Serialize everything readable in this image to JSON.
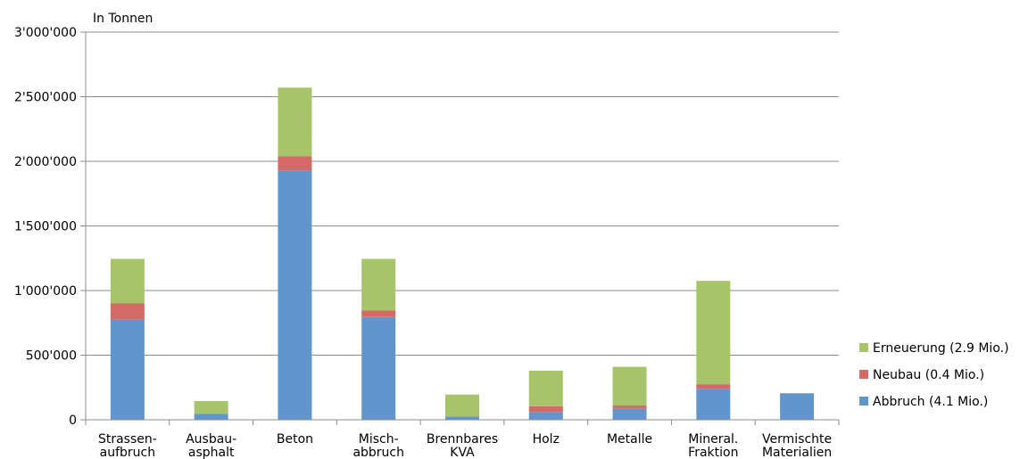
{
  "chart_data": {
    "type": "bar",
    "stacked": true,
    "ylabel": "In Tonnen",
    "ylim": [
      0,
      3000000
    ],
    "yticks": [
      0,
      500000,
      1000000,
      1500000,
      2000000,
      2500000,
      3000000
    ],
    "ytick_labels": [
      "0",
      "500'000",
      "1'000'000",
      "1'500'000",
      "2'000'000",
      "2'500'000",
      "3'000'000"
    ],
    "grid": true,
    "legend_position": "right",
    "categories": [
      [
        "Strassen-",
        "aufbruch"
      ],
      [
        "Ausbau-",
        "asphalt"
      ],
      [
        "Beton"
      ],
      [
        "Misch-",
        "abbruch"
      ],
      [
        "Brennbares",
        "KVA"
      ],
      [
        "Holz"
      ],
      [
        "Metalle"
      ],
      [
        "Mineral.",
        "Fraktion"
      ],
      [
        "Vermischte",
        "Materialien"
      ]
    ],
    "series": [
      {
        "name": "Abbruch (4.1 Mio.)",
        "color": "#6196cc",
        "values": [
          775000,
          45000,
          1930000,
          795000,
          25000,
          60000,
          85000,
          240000,
          205000
        ]
      },
      {
        "name": "Neubau (0.4 Mio.)",
        "color": "#d46a66",
        "values": [
          125000,
          0,
          110000,
          50000,
          0,
          45000,
          25000,
          35000,
          0
        ]
      },
      {
        "name": "Erneuerung (2.9 Mio.)",
        "color": "#a8c46a",
        "values": [
          345000,
          100000,
          530000,
          400000,
          170000,
          275000,
          300000,
          800000,
          0
        ]
      }
    ]
  }
}
